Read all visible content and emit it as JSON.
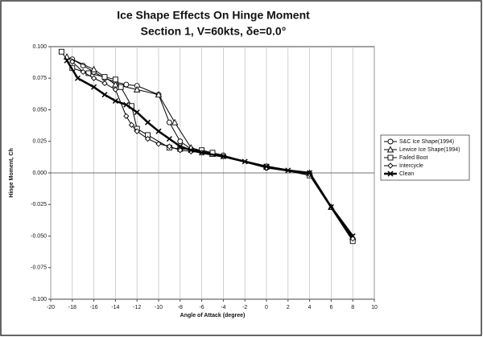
{
  "chart_data": {
    "type": "line",
    "title": "Ice Shape Effects On Hinge Moment",
    "subtitle": "Section 1, V=60kts, δe=0.0°",
    "xlabel": "Angle of Attack (degree)",
    "ylabel": "Hinge Moment, Ch",
    "xlim": [
      -20,
      10
    ],
    "xticks": [
      -20,
      -18,
      -16,
      -14,
      -12,
      -10,
      -8,
      -6,
      -4,
      -2,
      0,
      2,
      4,
      6,
      8,
      10
    ],
    "ylim": [
      -0.1,
      0.1
    ],
    "yticks": [
      {
        "value": 0.1,
        "label": "0.100"
      },
      {
        "value": 0.075,
        "label": "0.075"
      },
      {
        "value": 0.05,
        "label": "0.050"
      },
      {
        "value": 0.025,
        "label": "0.025"
      },
      {
        "value": 0,
        "label": "0.000"
      },
      {
        "value": -0.025,
        "label": "-0.025"
      },
      {
        "value": -0.05,
        "label": "-0.050"
      },
      {
        "value": -0.075,
        "label": "-0.075"
      },
      {
        "value": -0.1,
        "label": "-0.100"
      }
    ],
    "grid": "x",
    "legend": "right",
    "series": [
      {
        "name": "S&C Ice Shape(1994)",
        "color": "#000000",
        "marker": "circle",
        "width": 1,
        "x": [
          -18,
          -17,
          -16,
          -15,
          -14,
          -13,
          -12,
          -10,
          -9,
          -8,
          -7,
          -6,
          -5,
          -4,
          0,
          4,
          8
        ],
        "values": [
          0.09,
          0.085,
          0.08,
          0.075,
          0.072,
          0.07,
          0.069,
          0.062,
          0.04,
          0.025,
          0.019,
          0.017,
          0.016,
          0.014,
          0.004,
          -0.001,
          -0.053
        ]
      },
      {
        "name": "Lewice Ice Shape(1994)",
        "color": "#000000",
        "marker": "triangle",
        "width": 1,
        "x": [
          -18.5,
          -16,
          -14,
          -12,
          -10,
          -8.5,
          -7,
          -5,
          0,
          4,
          6,
          8
        ],
        "values": [
          0.092,
          0.082,
          0.07,
          0.066,
          0.062,
          0.04,
          0.02,
          0.015,
          0.005,
          0.0,
          -0.027,
          -0.051
        ]
      },
      {
        "name": "Failed Boot",
        "color": "#000000",
        "marker": "square",
        "width": 1,
        "x": [
          -19,
          -18,
          -16.5,
          -15,
          -14,
          -13.5,
          -12.5,
          -12,
          -11,
          -9,
          -8,
          -6,
          -5,
          0,
          4,
          8
        ],
        "values": [
          0.096,
          0.083,
          0.079,
          0.076,
          0.074,
          0.068,
          0.053,
          0.035,
          0.03,
          0.02,
          0.019,
          0.018,
          0.016,
          0.005,
          -0.002,
          -0.054
        ]
      },
      {
        "name": "Intercycle",
        "color": "#000000",
        "marker": "diamond",
        "width": 1,
        "x": [
          -18,
          -17,
          -16,
          -15,
          -14,
          -13,
          -12.5,
          -12,
          -11,
          -10,
          -9,
          -8,
          -7,
          -6,
          -4,
          0,
          4,
          8
        ],
        "values": [
          0.088,
          0.08,
          0.075,
          0.071,
          0.066,
          0.045,
          0.038,
          0.033,
          0.027,
          0.023,
          0.021,
          0.018,
          0.017,
          0.016,
          0.013,
          0.004,
          -0.001,
          -0.052
        ]
      },
      {
        "name": "Clean",
        "color": "#000000",
        "marker": "x",
        "width": 2.5,
        "x": [
          -18.5,
          -17.5,
          -16,
          -15,
          -14,
          -13,
          -12,
          -11,
          -10,
          -9,
          -8,
          -7,
          -6,
          -4,
          -2,
          0,
          2,
          4,
          6,
          8
        ],
        "values": [
          0.089,
          0.075,
          0.068,
          0.062,
          0.057,
          0.054,
          0.048,
          0.04,
          0.033,
          0.027,
          0.021,
          0.018,
          0.016,
          0.013,
          0.009,
          0.005,
          0.002,
          0.0,
          -0.027,
          -0.05
        ]
      }
    ]
  }
}
